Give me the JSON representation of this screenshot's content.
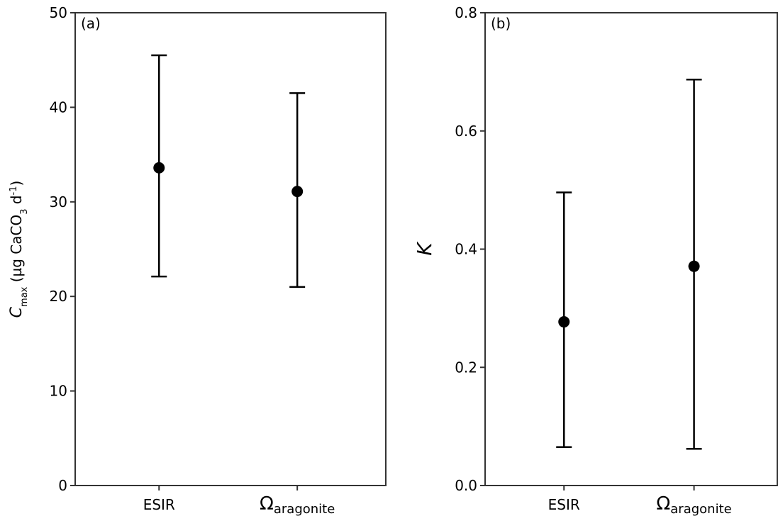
{
  "chart_data": [
    {
      "type": "errorbar",
      "panel_label": "(a)",
      "ylabel": [
        "C",
        "max",
        " (µg CaCO",
        "3",
        " d",
        "-1",
        ")"
      ],
      "categories": [
        "ESIR",
        "Ωaragonite"
      ],
      "values": [
        33.6,
        31.1
      ],
      "lower": [
        22.1,
        21.0
      ],
      "upper": [
        45.5,
        41.5
      ],
      "color": "#000000",
      "ylim": [
        0,
        50
      ],
      "yticks": [
        0,
        10,
        20,
        30,
        40,
        50
      ]
    },
    {
      "type": "errorbar",
      "panel_label": "(b)",
      "ylabel": [
        "K"
      ],
      "categories": [
        "ESIR",
        "Ωaragonite"
      ],
      "values": [
        0.277,
        0.371
      ],
      "lower": [
        0.065,
        0.062
      ],
      "upper": [
        0.496,
        0.687
      ],
      "color": "#000000",
      "ylim": [
        0,
        0.8
      ],
      "yticks": [
        {
          "value": 0,
          "label": "0.0"
        },
        0.2,
        0.4,
        0.6,
        0.8
      ]
    }
  ]
}
